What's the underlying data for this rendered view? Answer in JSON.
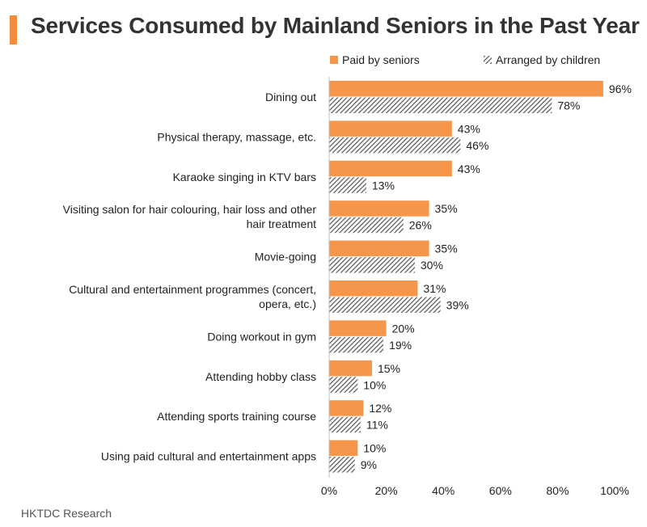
{
  "title": "Services Consumed by Mainland Seniors in the Past Year",
  "source": "HKTDC Research",
  "colors": {
    "accent": "#f28c3f",
    "seniors": "#f6964b",
    "children_hatch": "#555555",
    "text": "#222222"
  },
  "chart_data": {
    "type": "bar",
    "orientation": "horizontal",
    "categories": [
      [
        "Dining out"
      ],
      [
        "Physical therapy, massage, etc."
      ],
      [
        "Karaoke singing in KTV bars"
      ],
      [
        "Visiting salon for hair colouring, hair loss and other",
        "hair treatment"
      ],
      [
        "Movie-going"
      ],
      [
        "Cultural and entertainment programmes (concert,",
        "opera, etc.)"
      ],
      [
        "Doing workout in gym"
      ],
      [
        "Attending hobby class"
      ],
      [
        "Attending sports training course"
      ],
      [
        "Using paid cultural and entertainment apps"
      ]
    ],
    "series": [
      {
        "name": "Paid by seniors",
        "style": "solid",
        "values": [
          96,
          43,
          43,
          35,
          35,
          31,
          20,
          15,
          12,
          10
        ]
      },
      {
        "name": "Arranged by children",
        "style": "hatched",
        "values": [
          78,
          46,
          13,
          26,
          30,
          39,
          19,
          10,
          11,
          9
        ]
      }
    ],
    "value_suffix": "%",
    "xlim": [
      0,
      100
    ],
    "xticks": [
      0,
      20,
      40,
      60,
      80,
      100
    ],
    "tick_suffix": "%",
    "legend_position": "top-right",
    "grid": false
  }
}
